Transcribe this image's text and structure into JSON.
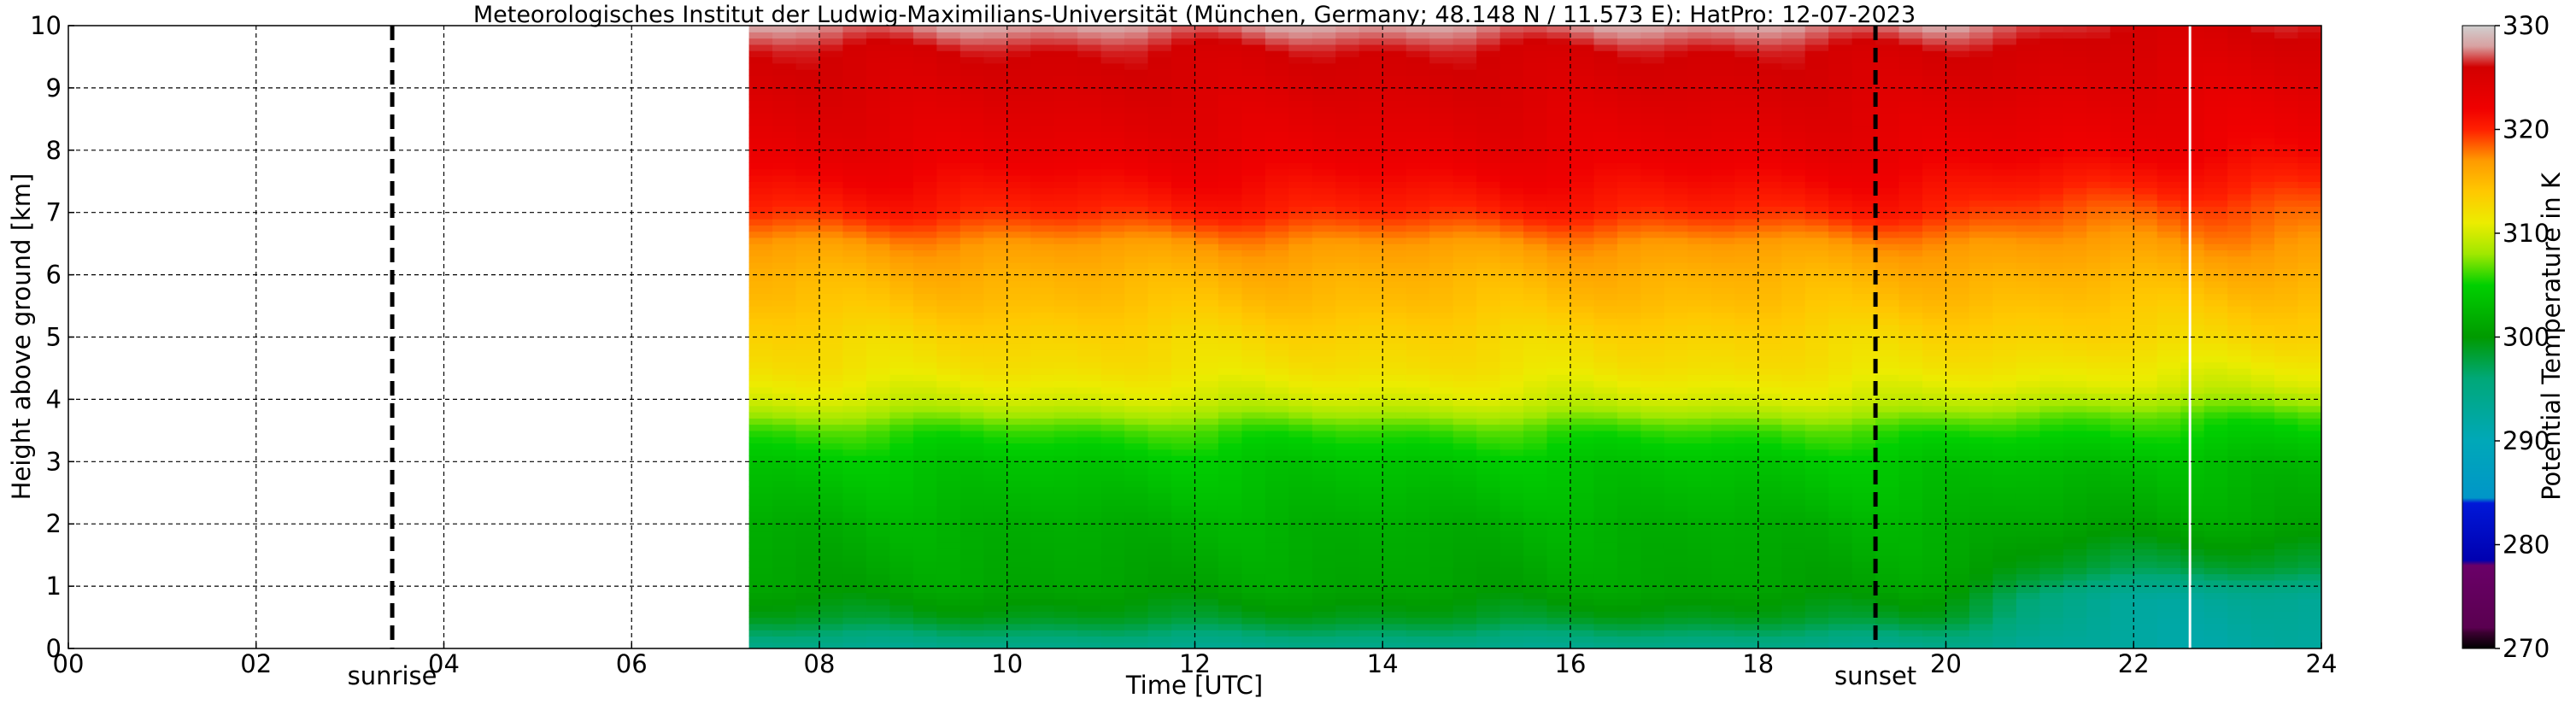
{
  "chart_data": {
    "type": "heatmap",
    "title": "Meteorologisches Institut der Ludwig-Maximilians-Universität (München, Germany; 48.148 N / 11.573 E):    HatPro: 12-07-2023",
    "xlabel": "Time [UTC]",
    "ylabel": "Height above ground [km]",
    "xlim": [
      0,
      24
    ],
    "ylim": [
      0,
      10
    ],
    "x_ticks": [
      "00",
      "02",
      "04",
      "06",
      "08",
      "10",
      "12",
      "14",
      "16",
      "18",
      "20",
      "22",
      "24"
    ],
    "y_ticks": [
      "0",
      "1",
      "2",
      "3",
      "4",
      "5",
      "6",
      "7",
      "8",
      "9",
      "10"
    ],
    "grid": true,
    "data_start_hour": 7.25,
    "data_end_hour": 24,
    "gap_hour": 22.6,
    "annotations": [
      {
        "label": "sunrise",
        "x": 3.45,
        "style": "dashed vertical line"
      },
      {
        "label": "sunset",
        "x": 19.25,
        "style": "dashed vertical line"
      }
    ],
    "colorbar": {
      "label": "Potential Temperature in K",
      "range": [
        270,
        330
      ],
      "ticks": [
        "270",
        "280",
        "290",
        "300",
        "310",
        "320",
        "330"
      ],
      "stops": [
        {
          "value": 270,
          "color": "#000000"
        },
        {
          "value": 271.5,
          "color": "#3a0030"
        },
        {
          "value": 272,
          "color": "#5a0050"
        },
        {
          "value": 278,
          "color": "#6a0068"
        },
        {
          "value": 278.5,
          "color": "#0000b0"
        },
        {
          "value": 284,
          "color": "#0018d8"
        },
        {
          "value": 284.5,
          "color": "#0096c8"
        },
        {
          "value": 290,
          "color": "#00a8b8"
        },
        {
          "value": 296,
          "color": "#00a878"
        },
        {
          "value": 300,
          "color": "#009a00"
        },
        {
          "value": 305,
          "color": "#00d000"
        },
        {
          "value": 308,
          "color": "#a0e800"
        },
        {
          "value": 311,
          "color": "#ecec00"
        },
        {
          "value": 314,
          "color": "#ffc800"
        },
        {
          "value": 317,
          "color": "#ff9a00"
        },
        {
          "value": 320,
          "color": "#ff2000"
        },
        {
          "value": 322,
          "color": "#f00000"
        },
        {
          "value": 326,
          "color": "#d20000"
        },
        {
          "value": 328,
          "color": "#d8a0a0"
        },
        {
          "value": 330,
          "color": "#d0d0d0"
        }
      ]
    },
    "profile_morning": [
      {
        "height_km": 0,
        "theta_K": 294
      },
      {
        "height_km": 0.5,
        "theta_K": 299
      },
      {
        "height_km": 1,
        "theta_K": 301
      },
      {
        "height_km": 2,
        "theta_K": 302
      },
      {
        "height_km": 3,
        "theta_K": 304
      },
      {
        "height_km": 3.5,
        "theta_K": 306
      },
      {
        "height_km": 4,
        "theta_K": 310
      },
      {
        "height_km": 4.5,
        "theta_K": 312
      },
      {
        "height_km": 5,
        "theta_K": 313
      },
      {
        "height_km": 5.5,
        "theta_K": 314.5
      },
      {
        "height_km": 6,
        "theta_K": 315.5
      },
      {
        "height_km": 6.5,
        "theta_K": 317
      },
      {
        "height_km": 7,
        "theta_K": 320
      },
      {
        "height_km": 8,
        "theta_K": 323
      },
      {
        "height_km": 9,
        "theta_K": 325
      },
      {
        "height_km": 9.6,
        "theta_K": 326
      },
      {
        "height_km": 10,
        "theta_K": 328
      }
    ],
    "profile_evening": [
      {
        "height_km": 0,
        "theta_K": 292
      },
      {
        "height_km": 0.8,
        "theta_K": 293
      },
      {
        "height_km": 1.3,
        "theta_K": 298
      },
      {
        "height_km": 2,
        "theta_K": 301
      },
      {
        "height_km": 3,
        "theta_K": 303
      },
      {
        "height_km": 3.7,
        "theta_K": 306
      },
      {
        "height_km": 4.2,
        "theta_K": 310
      },
      {
        "height_km": 5,
        "theta_K": 313
      },
      {
        "height_km": 6,
        "theta_K": 315.5
      },
      {
        "height_km": 7,
        "theta_K": 318.5
      },
      {
        "height_km": 8,
        "theta_K": 322
      },
      {
        "height_km": 9,
        "theta_K": 324
      },
      {
        "height_km": 10,
        "theta_K": 326
      }
    ]
  }
}
